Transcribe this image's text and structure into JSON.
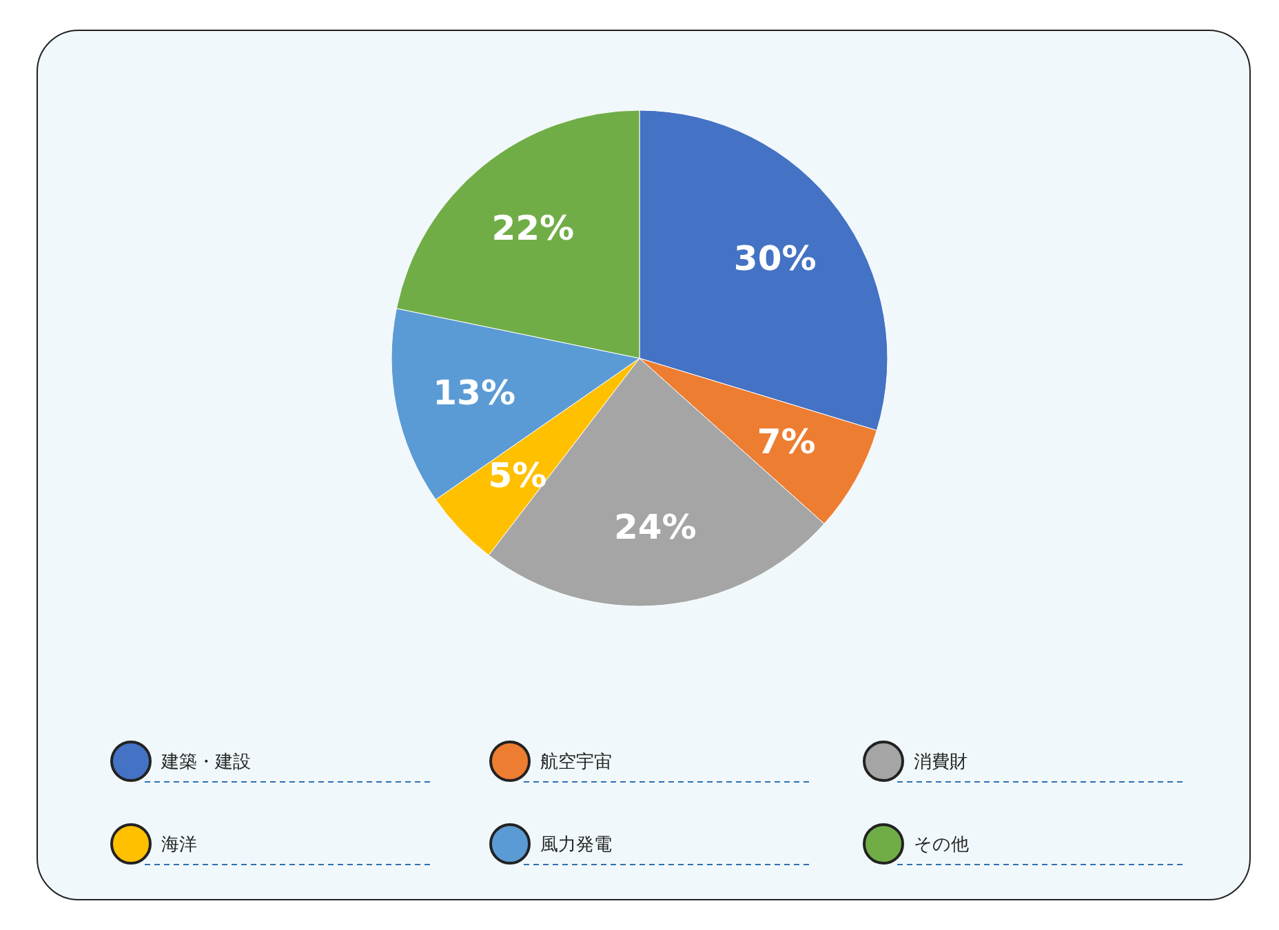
{
  "chart_data": {
    "type": "pie",
    "categories": [
      "建築・建設",
      "航空宇宙",
      "消費財",
      "海洋",
      "風力発電",
      "その他"
    ],
    "values": [
      30,
      7,
      24,
      5,
      13,
      22
    ],
    "colors": [
      "#4472c4",
      "#ed7d31",
      "#a5a5a5",
      "#ffc000",
      "#5b9bd5",
      "#70ad47"
    ],
    "value_labels": [
      "30%",
      "7%",
      "24%",
      "5%",
      "13%",
      "22%"
    ],
    "legend": "bottom"
  }
}
